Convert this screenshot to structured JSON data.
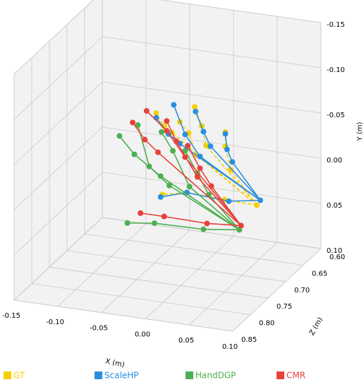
{
  "chart_data": {
    "type": "skeleton3d",
    "xlabel": "X (m)",
    "ylabel": "Y (m)",
    "zlabel": "Z (m)",
    "xlim": [
      -0.15,
      0.1
    ],
    "ylim": [
      0.1,
      -0.15
    ],
    "zlim": [
      0.6,
      0.85
    ],
    "xticks": [
      -0.15,
      {
        "value": -0.1,
        "label": "-0.10"
      },
      -0.05,
      {
        "value": 0,
        "label": "0.00"
      },
      0.05,
      {
        "value": 0.1,
        "label": "0.10"
      }
    ],
    "yticks": [
      -0.15,
      {
        "value": -0.1,
        "label": "-0.10"
      },
      -0.05,
      {
        "value": 0,
        "label": "0.00"
      },
      0.05,
      {
        "value": 0.1,
        "label": "0.10"
      }
    ],
    "zticks": [
      {
        "value": 0.6,
        "label": "0.60"
      },
      0.65,
      {
        "value": 0.7,
        "label": "0.70"
      },
      0.75,
      {
        "value": 0.8,
        "label": "0.80"
      },
      0.85
    ],
    "grid": true,
    "series": [
      {
        "name": "GT",
        "color": "#f5d000",
        "dashed": true,
        "x": [
          0.067,
          0.03,
          -0.013,
          -0.041,
          0.037,
          0.031,
          0.031,
          0.009,
          0.004,
          -0.004,
          -0.002,
          -0.011,
          -0.021,
          -0.03,
          -0.039,
          -0.048
        ],
        "y": [
          0.02,
          0.019,
          0.017,
          0.023,
          -0.015,
          -0.04,
          -0.056,
          -0.038,
          -0.059,
          -0.079,
          -0.026,
          -0.049,
          -0.06,
          -0.047,
          -0.053,
          -0.066
        ],
        "z": [
          0.7,
          0.7,
          0.7,
          0.7,
          0.7,
          0.7,
          0.7,
          0.7,
          0.7,
          0.7,
          0.7,
          0.7,
          0.7,
          0.7,
          0.7,
          0.7
        ]
      },
      {
        "name": "ScaleHP",
        "color": "#2b8fe0",
        "dashed": false,
        "x": [
          0.071,
          0.035,
          -0.013,
          -0.043,
          0.039,
          0.033,
          0.031,
          0.014,
          0.006,
          -0.003,
          0.002,
          -0.015,
          -0.028,
          -0.021,
          -0.034,
          -0.048
        ],
        "y": [
          0.014,
          0.02,
          0.017,
          0.026,
          -0.024,
          -0.037,
          -0.054,
          -0.038,
          -0.053,
          -0.074,
          -0.025,
          -0.047,
          -0.078,
          -0.036,
          -0.045,
          -0.061
        ],
        "z": [
          0.7,
          0.7,
          0.7,
          0.7,
          0.7,
          0.7,
          0.7,
          0.7,
          0.7,
          0.7,
          0.7,
          0.7,
          0.7,
          0.7,
          0.7,
          0.7
        ]
      },
      {
        "name": "HandDGP",
        "color": "#4caf50",
        "dashed": false,
        "x": [
          0.047,
          0.006,
          -0.05,
          -0.081,
          0.012,
          -0.001,
          -0.015,
          -0.01,
          -0.029,
          -0.042,
          -0.033,
          -0.056,
          -0.069,
          -0.043,
          -0.073,
          -0.09
        ],
        "y": [
          0.05,
          0.055,
          0.056,
          0.06,
          0.016,
          -0.006,
          -0.029,
          0.01,
          -0.027,
          -0.046,
          0.012,
          -0.006,
          -0.05,
          0.003,
          -0.017,
          -0.035
        ],
        "z": [
          0.7,
          0.7,
          0.7,
          0.7,
          0.7,
          0.7,
          0.7,
          0.7,
          0.7,
          0.7,
          0.7,
          0.7,
          0.7,
          0.7,
          0.7,
          0.7
        ]
      },
      {
        "name": "CMR",
        "color": "#e8413a",
        "dashed": false,
        "x": [
          0.049,
          0.01,
          -0.039,
          -0.066,
          0.015,
          0.002,
          -0.012,
          -0.001,
          -0.025,
          -0.036,
          -0.015,
          -0.036,
          -0.059,
          -0.046,
          -0.061,
          -0.075
        ],
        "y": [
          0.045,
          0.048,
          0.047,
          0.047,
          0.006,
          -0.012,
          -0.035,
          -0.002,
          -0.038,
          -0.059,
          -0.022,
          -0.048,
          -0.067,
          -0.023,
          -0.035,
          -0.052
        ],
        "z": [
          0.7,
          0.7,
          0.7,
          0.7,
          0.7,
          0.7,
          0.7,
          0.7,
          0.7,
          0.7,
          0.7,
          0.7,
          0.7,
          0.7,
          0.7,
          0.7
        ]
      }
    ]
  }
}
